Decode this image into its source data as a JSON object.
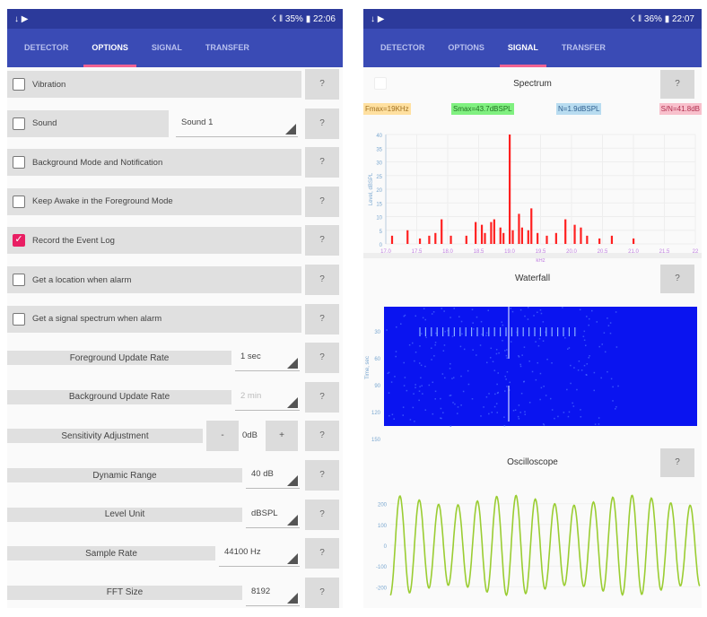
{
  "left": {
    "status": {
      "left_icons": "download-icon, play-store-icon",
      "right": "☇ ‖ 35% ▮ 22:06"
    },
    "tabs": [
      {
        "label": "DETECTOR"
      },
      {
        "label": "OPTIONS",
        "active": true
      },
      {
        "label": "SIGNAL"
      },
      {
        "label": "TRANSFER"
      }
    ],
    "help_label": "?",
    "checkboxes": [
      {
        "label": "Vibration",
        "checked": false
      },
      {
        "label": "Sound",
        "checked": false,
        "select": "Sound 1"
      },
      {
        "label": "Background Mode and Notification",
        "checked": false
      },
      {
        "label": "Keep Awake in the Foreground Mode",
        "checked": false
      },
      {
        "label": "Record the Event Log",
        "checked": true
      },
      {
        "label": "Get a location when alarm",
        "checked": false
      },
      {
        "label": "Get a signal spectrum when alarm",
        "checked": false
      }
    ],
    "settings": [
      {
        "label": "Foreground Update Rate",
        "value": "1 sec"
      },
      {
        "label": "Background Update Rate",
        "value": "2 min",
        "disabled": true
      },
      {
        "label": "Sensitivity Adjustment",
        "value": "0dB",
        "minus": "-",
        "plus": "+"
      },
      {
        "label": "Dynamic Range",
        "value": "40 dB"
      },
      {
        "label": "Level Unit",
        "value": "dBSPL"
      },
      {
        "label": "Sample Rate",
        "value": "44100 Hz"
      },
      {
        "label": "FFT Size",
        "value": "8192"
      }
    ]
  },
  "right": {
    "status": {
      "right": "☇ ‖ 36% ▮ 22:07"
    },
    "tabs": [
      {
        "label": "DETECTOR"
      },
      {
        "label": "OPTIONS"
      },
      {
        "label": "SIGNAL",
        "active": true
      },
      {
        "label": "TRANSFER"
      }
    ],
    "help_label": "?",
    "spectrum": {
      "title": "Spectrum",
      "fmax": "Fmax=19KHz",
      "smax": "Smax=43.7dBSPL",
      "noise": "N=1.9dBSPL",
      "snr": "S/N=41.8dB"
    },
    "waterfall": {
      "title": "Waterfall"
    },
    "oscilloscope": {
      "title": "Oscilloscope"
    }
  },
  "colors": {
    "header": "#3a4bb5",
    "status": "#2c3a9b",
    "accent": "#e91e63",
    "spectrum": "#ff2020",
    "waterfall": "#0a14f0",
    "scope": "#9acd32",
    "fmax_bg": "#ffe0a0",
    "smax_bg": "#80f080",
    "noise_bg": "#b8dcf0",
    "snr_bg": "#f8c0cc"
  },
  "chart_data": [
    {
      "type": "bar",
      "title": "Spectrum",
      "xlabel": "kHz",
      "ylabel": "Level, dBSPL",
      "xlim": [
        17,
        22
      ],
      "ylim": [
        0,
        40
      ],
      "xticks": [
        "17.0",
        "17.5",
        "18.0",
        "18.5",
        "19.0",
        "19.5",
        "20.0",
        "20.5",
        "21.0",
        "21.5",
        "22"
      ],
      "yticks": [
        "0",
        "5",
        "10",
        "15",
        "20",
        "25",
        "30",
        "35",
        "40"
      ],
      "grid": true,
      "x": [
        17.1,
        17.35,
        17.55,
        17.7,
        17.8,
        17.9,
        18.05,
        18.3,
        18.45,
        18.55,
        18.6,
        18.7,
        18.75,
        18.85,
        18.9,
        19.0,
        19.05,
        19.15,
        19.2,
        19.3,
        19.35,
        19.45,
        19.6,
        19.75,
        19.9,
        20.05,
        20.15,
        20.25,
        20.45,
        20.65,
        21.0
      ],
      "y": [
        3,
        5,
        2,
        3,
        4,
        9,
        3,
        3,
        8,
        7,
        4,
        8,
        9,
        6,
        4,
        40,
        5,
        11,
        6,
        5,
        13,
        4,
        3,
        4,
        9,
        7,
        6,
        3,
        2,
        3,
        2
      ]
    },
    {
      "type": "heatmap",
      "title": "Waterfall",
      "ylabel": "Time, sec",
      "yticks": [
        "30",
        "60",
        "90",
        "120",
        "150"
      ]
    },
    {
      "type": "line",
      "title": "Oscilloscope",
      "yticks": [
        "200",
        "100",
        "0",
        "-100",
        "-200"
      ],
      "ylim": [
        -280,
        280
      ],
      "amplitude": 240,
      "cycles": 16
    }
  ]
}
